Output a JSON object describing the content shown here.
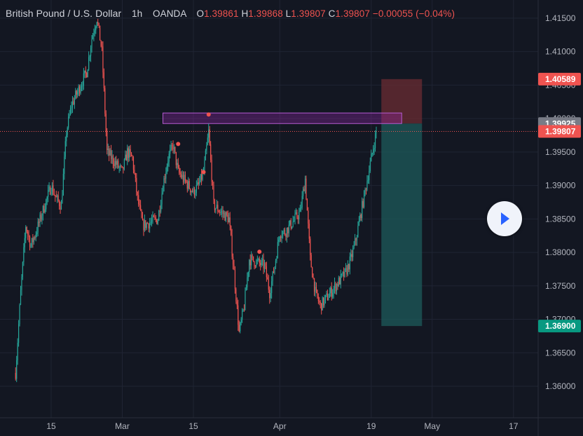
{
  "header": {
    "symbol": "British Pound / U.S. Dollar",
    "interval": "1h",
    "exchange": "OANDA",
    "o_label": "O",
    "o_value": "1.39861",
    "h_label": "H",
    "h_value": "1.39868",
    "l_label": "L",
    "l_value": "1.39807",
    "c_label": "C",
    "c_value": "1.39807",
    "change": "−0.00055 (−0.04%)"
  },
  "colors": {
    "background": "#131722",
    "grid": "#1f2433",
    "up": "#26a69a",
    "down": "#ef5350",
    "target_zone": "#1e5b5b",
    "stop_zone": "#6b2c33",
    "highlight_box": "#9c27b0"
  },
  "play_button": {
    "icon": "play-icon"
  },
  "chart_data": {
    "type": "candlestick",
    "title": "British Pound / U.S. Dollar",
    "ylim": [
      1.3555,
      1.4175
    ],
    "y_ticks": [
      "1.36000",
      "1.36500",
      "1.37000",
      "1.37500",
      "1.38000",
      "1.38500",
      "1.39000",
      "1.39500",
      "1.40000",
      "1.40500",
      "1.41000",
      "1.41500"
    ],
    "x_ticks": [
      "15",
      "Mar",
      "15",
      "Apr",
      "19",
      "May",
      "17"
    ],
    "price_path": [
      [
        "2021-02-08",
        1.362
      ],
      [
        "2021-02-09",
        1.374
      ],
      [
        "2021-02-10",
        1.384
      ],
      [
        "2021-02-11",
        1.381
      ],
      [
        "2021-02-12",
        1.383
      ],
      [
        "2021-02-15",
        1.39
      ],
      [
        "2021-02-16",
        1.388
      ],
      [
        "2021-02-17",
        1.387
      ],
      [
        "2021-02-18",
        1.398
      ],
      [
        "2021-02-19",
        1.402
      ],
      [
        "2021-02-22",
        1.407
      ],
      [
        "2021-02-23",
        1.412
      ],
      [
        "2021-02-24",
        1.415
      ],
      [
        "2021-02-25",
        1.41
      ],
      [
        "2021-02-26",
        1.395
      ],
      [
        "2021-03-01",
        1.392
      ],
      [
        "2021-03-02",
        1.395
      ],
      [
        "2021-03-03",
        1.394
      ],
      [
        "2021-03-04",
        1.388
      ],
      [
        "2021-03-05",
        1.384
      ],
      [
        "2021-03-08",
        1.385
      ],
      [
        "2021-03-09",
        1.39
      ],
      [
        "2021-03-10",
        1.394
      ],
      [
        "2021-03-11",
        1.396
      ],
      [
        "2021-03-12",
        1.392
      ],
      [
        "2021-03-15",
        1.389
      ],
      [
        "2021-03-16",
        1.39
      ],
      [
        "2021-03-17",
        1.392
      ],
      [
        "2021-03-18",
        1.398
      ],
      [
        "2021-03-19",
        1.387
      ],
      [
        "2021-03-22",
        1.385
      ],
      [
        "2021-03-23",
        1.377
      ],
      [
        "2021-03-24",
        1.368
      ],
      [
        "2021-03-25",
        1.372
      ],
      [
        "2021-03-26",
        1.379
      ],
      [
        "2021-03-29",
        1.378
      ],
      [
        "2021-03-30",
        1.374
      ],
      [
        "2021-03-31",
        1.378
      ],
      [
        "2021-04-01",
        1.383
      ],
      [
        "2021-04-02",
        1.383
      ],
      [
        "2021-04-05",
        1.386
      ],
      [
        "2021-04-06",
        1.391
      ],
      [
        "2021-04-07",
        1.379
      ],
      [
        "2021-04-08",
        1.374
      ],
      [
        "2021-04-09",
        1.372
      ],
      [
        "2021-04-12",
        1.375
      ],
      [
        "2021-04-13",
        1.376
      ],
      [
        "2021-04-14",
        1.377
      ],
      [
        "2021-04-15",
        1.379
      ],
      [
        "2021-04-16",
        1.382
      ],
      [
        "2021-04-19",
        1.394
      ],
      [
        "2021-04-20",
        1.3981
      ]
    ],
    "overlay": {
      "resistance_zone": {
        "y_top": 1.40083,
        "y_bottom": 1.39925,
        "x_start": "2021-03-09",
        "x_end": "2021-04-25"
      },
      "stop_zone": {
        "y_top": 1.40589,
        "y_bottom": 1.39925,
        "x_start": "2021-04-21",
        "x_end": "2021-04-29"
      },
      "target_zone": {
        "y_top": 1.39925,
        "y_bottom": 1.369,
        "x_start": "2021-04-21",
        "x_end": "2021-04-29"
      },
      "dots": [
        [
          "2021-03-12",
          1.3962
        ],
        [
          "2021-03-18",
          1.4006
        ],
        [
          "2021-03-17",
          1.392
        ],
        [
          "2021-03-28",
          1.3801
        ]
      ]
    },
    "price_labels": [
      {
        "text": "1.40589",
        "value": 1.40589,
        "color": "#ef5350"
      },
      {
        "text": "1.39925",
        "value": 1.39925,
        "color": "#787b86"
      },
      {
        "text": "1.39807",
        "value": 1.39807,
        "color": "#ef5350"
      },
      {
        "text": "1.36900",
        "value": 1.369,
        "color": "#089981"
      }
    ],
    "current_price": 1.39807
  }
}
